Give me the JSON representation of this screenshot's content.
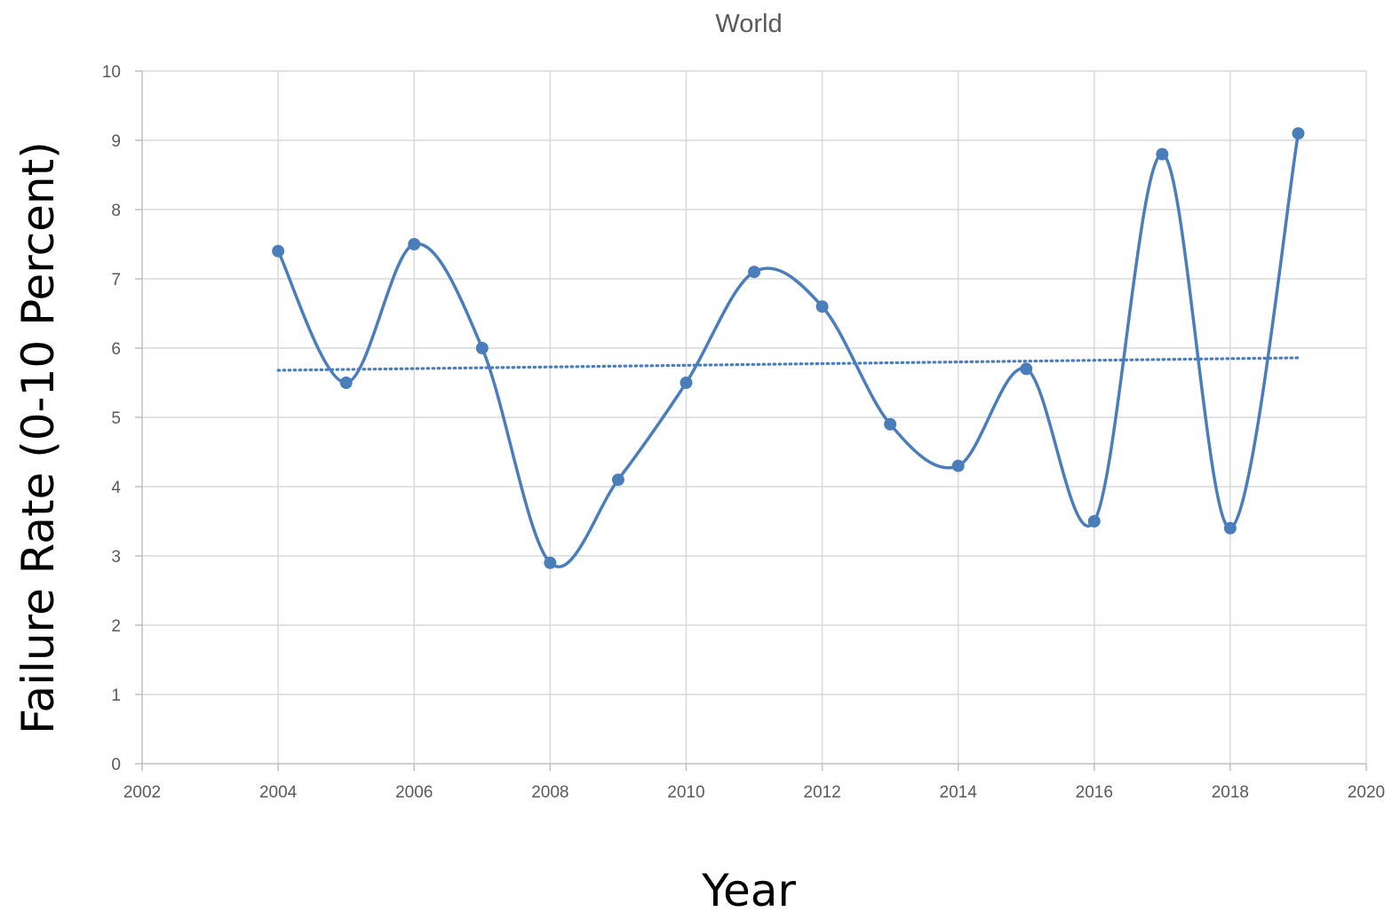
{
  "chart_data": {
    "type": "scatter",
    "title": "World",
    "xlabel": "Year",
    "ylabel": "Failure Rate (0-10 Percent)",
    "xlim": [
      2002,
      2020
    ],
    "ylim": [
      0,
      10
    ],
    "x_ticks": [
      2002,
      2004,
      2006,
      2008,
      2010,
      2012,
      2014,
      2016,
      2018,
      2020
    ],
    "y_ticks": [
      0,
      1,
      2,
      3,
      4,
      5,
      6,
      7,
      8,
      9,
      10
    ],
    "grid": true,
    "line_style": "smoothed",
    "series": [
      {
        "color": "#4a7ebb",
        "x": [
          2004,
          2005,
          2006,
          2007,
          2008,
          2009,
          2010,
          2011,
          2012,
          2013,
          2014,
          2015,
          2016,
          2017,
          2018,
          2019
        ],
        "y": [
          7.4,
          5.5,
          7.5,
          6.0,
          2.9,
          4.1,
          5.5,
          7.1,
          6.6,
          4.9,
          4.3,
          5.7,
          3.5,
          8.8,
          3.4,
          9.1
        ]
      }
    ],
    "trendline": {
      "type": "linear",
      "style": "dotted",
      "color": "#4a7ebb",
      "x": [
        2004,
        2019
      ],
      "y": [
        5.68,
        5.86
      ]
    }
  }
}
